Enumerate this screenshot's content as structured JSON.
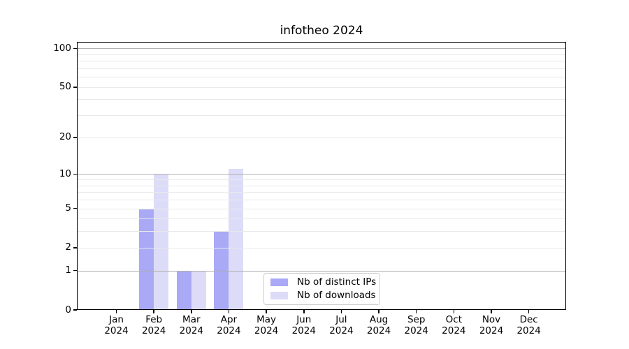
{
  "chart_data": {
    "type": "bar",
    "title": "infotheo 2024",
    "x": {
      "months": [
        "Jan",
        "Feb",
        "Mar",
        "Apr",
        "May",
        "Jun",
        "Jul",
        "Aug",
        "Sep",
        "Oct",
        "Nov",
        "Dec"
      ],
      "year": "2024"
    },
    "series": [
      {
        "name": "Nb of distinct IPs",
        "color": "#a9a9f5",
        "values": [
          0,
          5,
          1,
          3,
          0,
          0,
          0,
          0,
          0,
          0,
          0,
          0
        ]
      },
      {
        "name": "Nb of downloads",
        "color": "#dcdcf8",
        "values": [
          0,
          10,
          1,
          11,
          0,
          0,
          0,
          0,
          0,
          0,
          0,
          0
        ]
      }
    ],
    "y_axis": {
      "scale": "log1p",
      "ticks": [
        0,
        1,
        2,
        5,
        10,
        20,
        50,
        100
      ],
      "major_gridlines": [
        1,
        10,
        100
      ],
      "minor_gridlines": [
        2,
        3,
        4,
        5,
        6,
        7,
        8,
        9,
        20,
        30,
        40,
        50,
        60,
        70,
        80,
        90
      ],
      "ylim": [
        0,
        112
      ]
    },
    "legend": {
      "position": "lower center"
    },
    "colors": {
      "major_grid": "#b0b0b0",
      "minor_grid": "#e9e9e9",
      "axis": "#000000",
      "text": "#000000"
    },
    "grid": "on"
  }
}
